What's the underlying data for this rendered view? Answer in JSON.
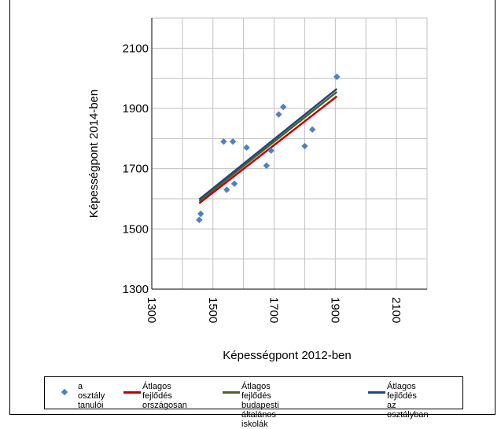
{
  "colors": {
    "points": "#4f81bd",
    "national": "#c00000",
    "budapest": "#4f6228",
    "class": "#1f497d",
    "grid": "#c0c0c0"
  },
  "chart_data": {
    "type": "scatter",
    "xlabel": "Képességpont 2012-ben",
    "ylabel": "Képességpont 2014-ben",
    "xlim": [
      1300,
      2200
    ],
    "ylim": [
      1300,
      2200
    ],
    "xticks": [
      "1300",
      "1500",
      "1700",
      "1900",
      "2100"
    ],
    "yticks": [
      "1300",
      "1500",
      "1700",
      "1900",
      "2100"
    ],
    "grid": true,
    "legend_position": "bottom",
    "series": [
      {
        "name": "a osztály\ntanulói",
        "kind": "points",
        "marker": "diamond",
        "color": "#4f81bd",
        "points": [
          [
            1455,
            1530
          ],
          [
            1460,
            1550
          ],
          [
            1535,
            1790
          ],
          [
            1545,
            1630
          ],
          [
            1565,
            1790
          ],
          [
            1570,
            1650
          ],
          [
            1610,
            1770
          ],
          [
            1675,
            1710
          ],
          [
            1690,
            1760
          ],
          [
            1715,
            1880
          ],
          [
            1730,
            1905
          ],
          [
            1800,
            1775
          ],
          [
            1825,
            1830
          ],
          [
            1905,
            2005
          ]
        ]
      },
      {
        "name": "Átlagos fejlődés\nországosan",
        "kind": "line",
        "color": "#c00000",
        "points": [
          [
            1455,
            1585
          ],
          [
            1905,
            1940
          ]
        ]
      },
      {
        "name": "Átlagos fejlődés\nbudapesti általános iskolák",
        "kind": "line",
        "color": "#4f6228",
        "points": [
          [
            1455,
            1592
          ],
          [
            1905,
            1955
          ]
        ]
      },
      {
        "name": "Átlagos fejlődés\naz osztályban",
        "kind": "line",
        "color": "#1f497d",
        "points": [
          [
            1455,
            1598
          ],
          [
            1905,
            1965
          ]
        ]
      }
    ]
  }
}
